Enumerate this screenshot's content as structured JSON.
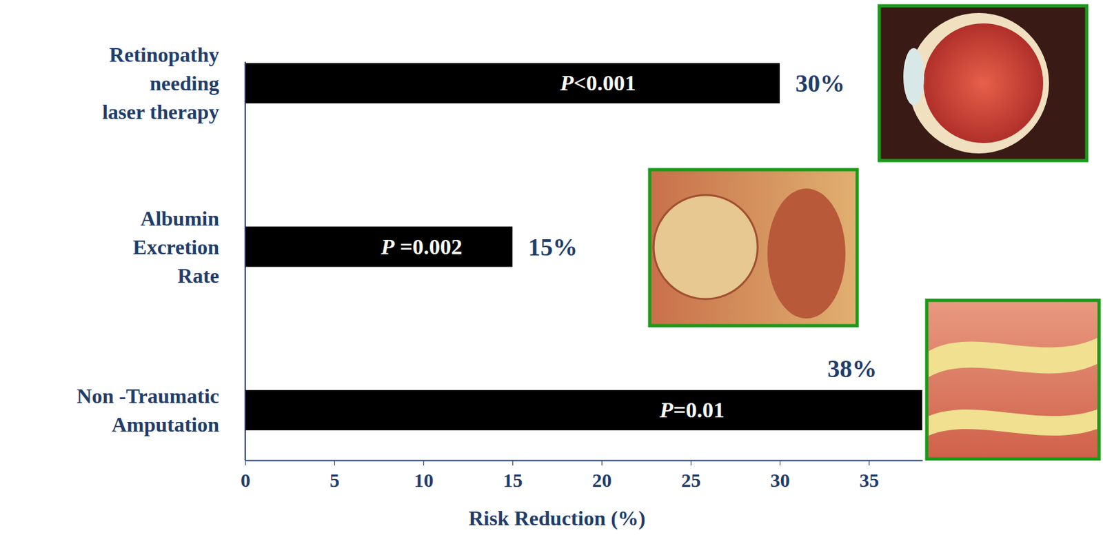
{
  "chart_data": {
    "type": "bar",
    "orientation": "horizontal",
    "categories": [
      "Retinopathy\nneeding\nlaser therapy",
      "Albumin\nExcretion\nRate",
      "Non -Traumatic\nAmputation"
    ],
    "values": [
      30,
      15,
      38
    ],
    "value_labels": [
      "30%",
      "15%",
      "38%"
    ],
    "data_labels": true,
    "color": "#000000",
    "xlabel": "Risk Reduction (%)",
    "xlim": [
      0,
      38
    ],
    "xticks": [
      0,
      5,
      10,
      15,
      20,
      25,
      30,
      35
    ],
    "annotations": [
      "P<0.001",
      "P =0.002",
      "P=0.01"
    ],
    "grid": false
  }
}
